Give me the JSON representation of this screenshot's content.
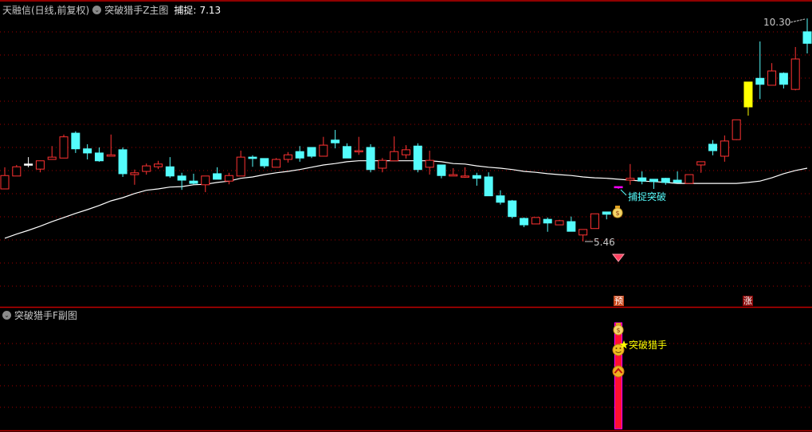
{
  "header": {
    "stock": "天融信(日线,前复权)",
    "main_indicator": "突破猎手Z主图",
    "capture_label": "捕捉:",
    "capture_value": "7.13",
    "sub_indicator": "突破猎手F副图"
  },
  "annotations": {
    "high_label": "10.30",
    "low_label": "5.46",
    "capture_breakout": "捕捉突破",
    "pre_badge": "预",
    "rise_badge": "涨",
    "sub_signal": "突破猎手"
  },
  "colors": {
    "up": "#ff3232",
    "down": "#54fcfc",
    "ma": "#ffffff",
    "grid": "#a00000",
    "special_yellow": "#ffff00",
    "special_magenta": "#ff00ff",
    "signal_text": "#ffff00",
    "capture_text": "#54fcfc"
  },
  "icons": [
    "collapse-chevron-icon",
    "money-bag-icon",
    "diamond-icon",
    "smiley-icon",
    "up-chevron-icon",
    "star-icon"
  ],
  "chart_data": {
    "type": "candlestick",
    "ylim": [
      4.04,
      10.7
    ],
    "grid": true,
    "ohlc": [
      [
        6.6,
        7.07,
        6.6,
        6.89
      ],
      [
        6.88,
        7.12,
        6.88,
        7.08
      ],
      [
        7.14,
        7.29,
        7.07,
        7.14
      ],
      [
        7.03,
        7.21,
        6.96,
        7.21
      ],
      [
        7.24,
        7.53,
        7.24,
        7.29
      ],
      [
        7.27,
        7.78,
        7.27,
        7.73
      ],
      [
        7.81,
        7.85,
        7.38,
        7.47
      ],
      [
        7.47,
        7.57,
        7.24,
        7.38
      ],
      [
        7.38,
        7.5,
        7.19,
        7.21
      ],
      [
        7.31,
        7.78,
        7.31,
        7.34
      ],
      [
        7.45,
        7.5,
        6.86,
        6.93
      ],
      [
        6.91,
        7.02,
        6.69,
        6.95
      ],
      [
        6.98,
        7.15,
        6.91,
        7.1
      ],
      [
        7.08,
        7.21,
        7.03,
        7.14
      ],
      [
        7.08,
        7.29,
        6.84,
        6.88
      ],
      [
        6.88,
        6.95,
        6.58,
        6.79
      ],
      [
        6.77,
        6.93,
        6.7,
        6.72
      ],
      [
        6.69,
        6.88,
        6.53,
        6.88
      ],
      [
        6.93,
        7.07,
        6.81,
        6.81
      ],
      [
        6.77,
        6.95,
        6.7,
        6.89
      ],
      [
        6.88,
        7.43,
        6.88,
        7.29
      ],
      [
        7.29,
        7.33,
        7.08,
        7.26
      ],
      [
        7.26,
        7.26,
        7.05,
        7.1
      ],
      [
        7.07,
        7.27,
        7.07,
        7.24
      ],
      [
        7.24,
        7.4,
        7.17,
        7.34
      ],
      [
        7.41,
        7.53,
        7.19,
        7.27
      ],
      [
        7.5,
        7.5,
        7.27,
        7.31
      ],
      [
        7.31,
        7.73,
        7.31,
        7.55
      ],
      [
        7.66,
        7.88,
        7.48,
        7.6
      ],
      [
        7.52,
        7.59,
        7.27,
        7.27
      ],
      [
        7.43,
        7.73,
        7.34,
        7.43
      ],
      [
        7.5,
        7.57,
        6.96,
        7.02
      ],
      [
        7.05,
        7.27,
        6.96,
        7.22
      ],
      [
        7.21,
        7.74,
        7.21,
        7.41
      ],
      [
        7.34,
        7.55,
        7.26,
        7.45
      ],
      [
        7.53,
        7.59,
        6.96,
        7.02
      ],
      [
        7.07,
        7.43,
        6.91,
        7.22
      ],
      [
        7.12,
        7.12,
        6.83,
        6.89
      ],
      [
        6.88,
        7.05,
        6.88,
        6.91
      ],
      [
        6.86,
        7.07,
        6.84,
        6.88
      ],
      [
        6.89,
        6.95,
        6.67,
        6.83
      ],
      [
        6.86,
        6.96,
        6.45,
        6.45
      ],
      [
        6.45,
        6.57,
        6.26,
        6.31
      ],
      [
        6.34,
        6.36,
        5.96,
        6.0
      ],
      [
        5.96,
        5.98,
        5.77,
        5.82
      ],
      [
        5.84,
        5.98,
        5.84,
        5.98
      ],
      [
        5.94,
        5.98,
        5.67,
        5.86
      ],
      [
        5.82,
        5.93,
        5.82,
        5.91
      ],
      [
        5.89,
        6.0,
        5.68,
        5.68
      ],
      [
        5.6,
        5.72,
        5.46,
        5.72
      ],
      [
        5.74,
        6.06,
        5.74,
        6.06
      ],
      [
        6.1,
        6.1,
        5.94,
        6.05
      ],
      [
        6.65,
        6.65,
        6.6,
        6.65
      ],
      [
        6.79,
        7.14,
        6.69,
        6.83
      ],
      [
        6.84,
        6.98,
        6.7,
        6.77
      ],
      [
        6.81,
        6.81,
        6.6,
        6.76
      ],
      [
        6.83,
        6.84,
        6.69,
        6.74
      ],
      [
        6.79,
        6.98,
        6.74,
        6.74
      ],
      [
        6.72,
        6.91,
        6.72,
        6.91
      ],
      [
        7.12,
        7.19,
        6.95,
        7.19
      ],
      [
        7.57,
        7.66,
        7.33,
        7.43
      ],
      [
        7.31,
        7.76,
        7.19,
        7.64
      ],
      [
        7.67,
        8.1,
        7.66,
        8.1
      ],
      [
        8.38,
        8.92,
        8.19,
        8.92
      ],
      [
        9.0,
        9.8,
        8.55,
        8.87
      ],
      [
        8.85,
        9.33,
        8.85,
        9.16
      ],
      [
        9.11,
        9.13,
        8.78,
        8.87
      ],
      [
        8.76,
        9.68,
        8.74,
        9.42
      ],
      [
        10.01,
        10.3,
        9.54,
        9.76
      ]
    ],
    "special_colors": {
      "2": "#ffffff",
      "52": "#ff00ff",
      "63": "#ffff00"
    },
    "ma": [
      5.53,
      5.62,
      5.7,
      5.79,
      5.89,
      5.98,
      6.07,
      6.15,
      6.24,
      6.34,
      6.41,
      6.5,
      6.57,
      6.6,
      6.64,
      6.65,
      6.69,
      6.7,
      6.74,
      6.77,
      6.83,
      6.86,
      6.91,
      6.95,
      6.98,
      7.02,
      7.07,
      7.12,
      7.15,
      7.19,
      7.21,
      7.21,
      7.21,
      7.21,
      7.21,
      7.21,
      7.21,
      7.19,
      7.15,
      7.14,
      7.1,
      7.07,
      7.05,
      7.02,
      6.98,
      6.96,
      6.93,
      6.91,
      6.89,
      6.86,
      6.84,
      6.83,
      6.81,
      6.79,
      6.77,
      6.76,
      6.74,
      6.72,
      6.72,
      6.72,
      6.72,
      6.72,
      6.72,
      6.74,
      6.77,
      6.84,
      6.93,
      7.0,
      7.05
    ],
    "signal_index": 52,
    "rise_index": 63
  }
}
